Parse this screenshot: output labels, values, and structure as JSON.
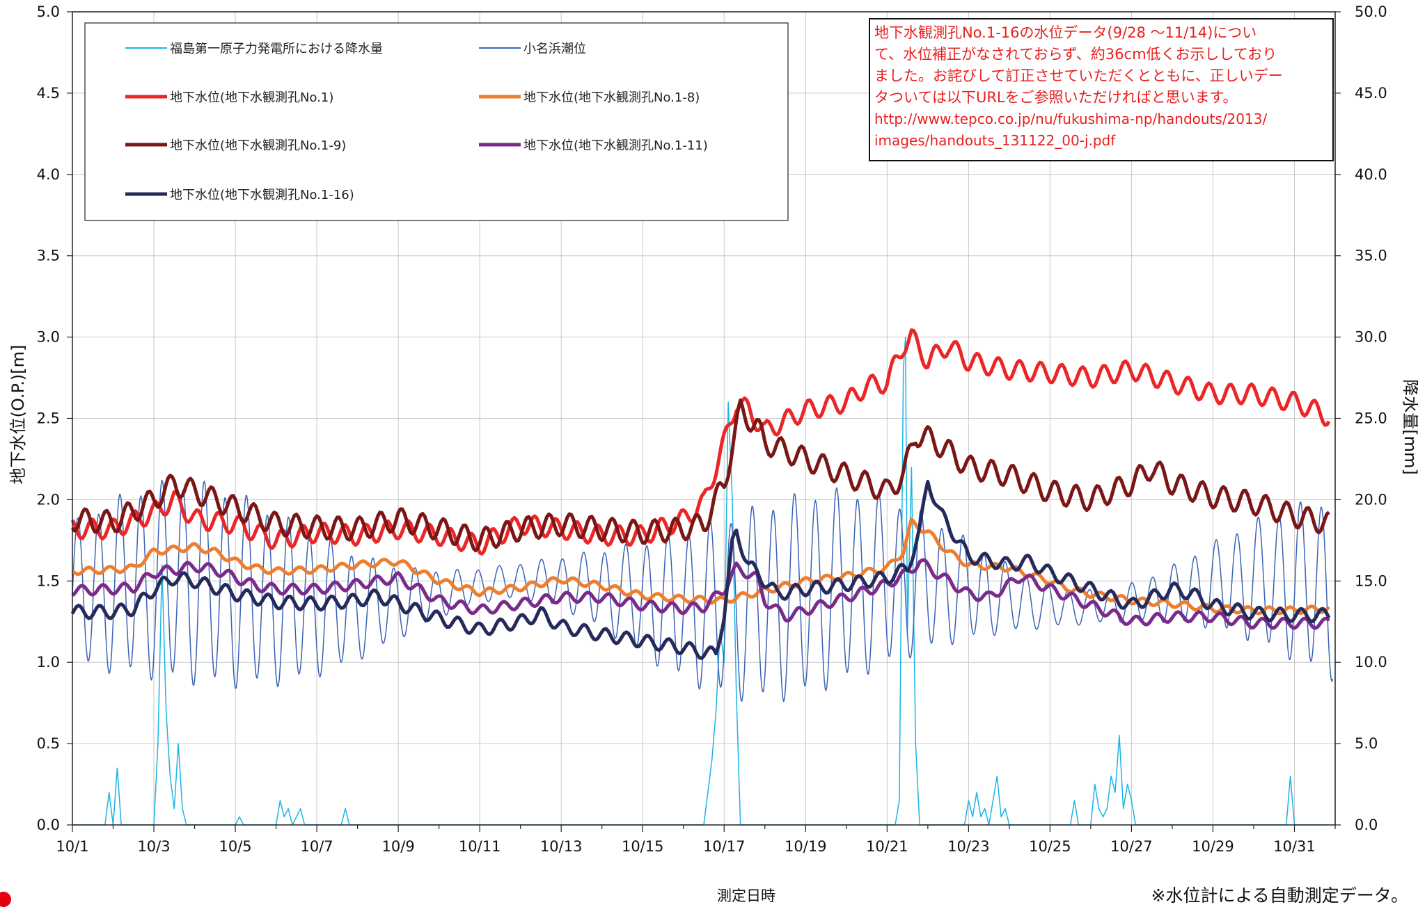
{
  "chart_data": {
    "type": "line",
    "xlabel": "測定日時",
    "ylabel_left": "地下水位(O.P.)[m]",
    "ylabel_right": "降水量[mm]",
    "x_ticks": [
      "10/1",
      "10/3",
      "10/5",
      "10/7",
      "10/9",
      "10/11",
      "10/13",
      "10/15",
      "10/17",
      "10/19",
      "10/21",
      "10/23",
      "10/25",
      "10/27",
      "10/29",
      "10/31"
    ],
    "x_range": [
      "2013-10-01",
      "2013-11-01"
    ],
    "y_left_ticks": [
      "0.0",
      "0.5",
      "1.0",
      "1.5",
      "2.0",
      "2.5",
      "3.0",
      "3.5",
      "4.0",
      "4.5",
      "5.0"
    ],
    "y_right_ticks": [
      "0.0",
      "5.0",
      "10.0",
      "15.0",
      "20.0",
      "25.0",
      "30.0",
      "35.0",
      "40.0",
      "45.0",
      "50.0"
    ],
    "ylim_left": [
      0,
      5
    ],
    "ylim_right": [
      0,
      50
    ],
    "grid": true,
    "legend_position": "top-left",
    "series": [
      {
        "name": "福島第一原子力発電所における降水量",
        "axis": "right",
        "color": "#1ab4e6",
        "width": 1.5,
        "points": [
          [
            0,
            0
          ],
          [
            0.8,
            0
          ],
          [
            0.9,
            2
          ],
          [
            1.0,
            0
          ],
          [
            1.1,
            3.5
          ],
          [
            1.2,
            0
          ],
          [
            2.0,
            0
          ],
          [
            2.1,
            5
          ],
          [
            2.2,
            16
          ],
          [
            2.3,
            7
          ],
          [
            2.4,
            3
          ],
          [
            2.5,
            1
          ],
          [
            2.6,
            5
          ],
          [
            2.7,
            1
          ],
          [
            2.8,
            0
          ],
          [
            4.0,
            0
          ],
          [
            4.1,
            0.5
          ],
          [
            4.2,
            0
          ],
          [
            5.0,
            0
          ],
          [
            5.1,
            1.5
          ],
          [
            5.2,
            0.5
          ],
          [
            5.3,
            1
          ],
          [
            5.4,
            0
          ],
          [
            5.6,
            1
          ],
          [
            5.7,
            0
          ],
          [
            6.6,
            0
          ],
          [
            6.7,
            1
          ],
          [
            6.8,
            0
          ],
          [
            15.5,
            0
          ],
          [
            15.6,
            2
          ],
          [
            15.7,
            4
          ],
          [
            15.8,
            7
          ],
          [
            15.9,
            12
          ],
          [
            16.0,
            10
          ],
          [
            16.1,
            26
          ],
          [
            16.2,
            20
          ],
          [
            16.3,
            8
          ],
          [
            16.4,
            0
          ],
          [
            20.2,
            0
          ],
          [
            20.3,
            1.5
          ],
          [
            20.4,
            28
          ],
          [
            20.45,
            30
          ],
          [
            20.5,
            12
          ],
          [
            20.6,
            22
          ],
          [
            20.7,
            5
          ],
          [
            20.8,
            0
          ],
          [
            21.9,
            0
          ],
          [
            22.0,
            1.5
          ],
          [
            22.1,
            0.5
          ],
          [
            22.2,
            2
          ],
          [
            22.3,
            0.5
          ],
          [
            22.4,
            1
          ],
          [
            22.5,
            0
          ],
          [
            22.6,
            1.5
          ],
          [
            22.7,
            3
          ],
          [
            22.8,
            0.5
          ],
          [
            22.9,
            1
          ],
          [
            23.0,
            0
          ],
          [
            24.5,
            0
          ],
          [
            24.6,
            1.5
          ],
          [
            24.7,
            0
          ],
          [
            25.0,
            0
          ],
          [
            25.1,
            2.5
          ],
          [
            25.2,
            1
          ],
          [
            25.3,
            0.5
          ],
          [
            25.4,
            1
          ],
          [
            25.5,
            3
          ],
          [
            25.6,
            2
          ],
          [
            25.7,
            5.5
          ],
          [
            25.8,
            1
          ],
          [
            25.9,
            2.5
          ],
          [
            26.0,
            1.5
          ],
          [
            26.1,
            0
          ],
          [
            29.8,
            0
          ],
          [
            29.9,
            3
          ],
          [
            30.0,
            0
          ],
          [
            30.8,
            0
          ]
        ]
      },
      {
        "name": "小名浜潮位",
        "axis": "left",
        "color": "#3b64b4",
        "width": 1.5,
        "tidal": true
      },
      {
        "name": "地下水位(地下水観測孔No.1)",
        "axis": "left",
        "color": "#ec2527",
        "width": 5,
        "points": [
          [
            0,
            1.82
          ],
          [
            1,
            1.82
          ],
          [
            2,
            1.92
          ],
          [
            2.5,
            2.0
          ],
          [
            3,
            1.88
          ],
          [
            4,
            1.85
          ],
          [
            5,
            1.75
          ],
          [
            6,
            1.8
          ],
          [
            7,
            1.78
          ],
          [
            8,
            1.82
          ],
          [
            9,
            1.78
          ],
          [
            10,
            1.72
          ],
          [
            11,
            1.85
          ],
          [
            12,
            1.82
          ],
          [
            13,
            1.78
          ],
          [
            14,
            1.78
          ],
          [
            15,
            1.88
          ],
          [
            15.5,
            1.98
          ],
          [
            16,
            2.35
          ],
          [
            16.3,
            2.6
          ],
          [
            16.6,
            2.55
          ],
          [
            17,
            2.42
          ],
          [
            18,
            2.55
          ],
          [
            19,
            2.6
          ],
          [
            19.5,
            2.7
          ],
          [
            20,
            2.72
          ],
          [
            20.4,
            2.95
          ],
          [
            20.6,
            3.0
          ],
          [
            21,
            2.85
          ],
          [
            21.5,
            2.95
          ],
          [
            22,
            2.85
          ],
          [
            23,
            2.8
          ],
          [
            24,
            2.78
          ],
          [
            25,
            2.75
          ],
          [
            26,
            2.8
          ],
          [
            27,
            2.72
          ],
          [
            28,
            2.65
          ],
          [
            29,
            2.65
          ],
          [
            30,
            2.6
          ],
          [
            30.5,
            2.55
          ],
          [
            30.9,
            2.5
          ]
        ]
      },
      {
        "name": "地下水位(地下水観測孔No.1-8)",
        "axis": "left",
        "color": "#ef7d2e",
        "width": 5,
        "points": [
          [
            0,
            1.56
          ],
          [
            1,
            1.57
          ],
          [
            1.5,
            1.58
          ],
          [
            2,
            1.68
          ],
          [
            3,
            1.71
          ],
          [
            3.5,
            1.68
          ],
          [
            4,
            1.62
          ],
          [
            4.5,
            1.58
          ],
          [
            5,
            1.56
          ],
          [
            6,
            1.57
          ],
          [
            7,
            1.6
          ],
          [
            8,
            1.62
          ],
          [
            9,
            1.5
          ],
          [
            10,
            1.43
          ],
          [
            11,
            1.46
          ],
          [
            12,
            1.51
          ],
          [
            13,
            1.47
          ],
          [
            14,
            1.41
          ],
          [
            15,
            1.39
          ],
          [
            16,
            1.38
          ],
          [
            17,
            1.44
          ],
          [
            18,
            1.5
          ],
          [
            19,
            1.53
          ],
          [
            20,
            1.58
          ],
          [
            20.4,
            1.68
          ],
          [
            20.6,
            1.86
          ],
          [
            21,
            1.8
          ],
          [
            21.5,
            1.68
          ],
          [
            22,
            1.6
          ],
          [
            23,
            1.58
          ],
          [
            24,
            1.5
          ],
          [
            24.5,
            1.45
          ],
          [
            25,
            1.42
          ],
          [
            26,
            1.38
          ],
          [
            27,
            1.36
          ],
          [
            28,
            1.33
          ],
          [
            29,
            1.32
          ],
          [
            30,
            1.32
          ],
          [
            30.9,
            1.33
          ]
        ]
      },
      {
        "name": "地下水位(地下水観測孔No.1-9)",
        "axis": "left",
        "color": "#7b1616",
        "width": 5,
        "points": [
          [
            0,
            1.88
          ],
          [
            1,
            1.86
          ],
          [
            2,
            2.0
          ],
          [
            2.5,
            2.1
          ],
          [
            3,
            2.05
          ],
          [
            4,
            1.95
          ],
          [
            5,
            1.85
          ],
          [
            6,
            1.83
          ],
          [
            7,
            1.82
          ],
          [
            8,
            1.88
          ],
          [
            9,
            1.82
          ],
          [
            10,
            1.75
          ],
          [
            11,
            1.82
          ],
          [
            12,
            1.85
          ],
          [
            13,
            1.82
          ],
          [
            14,
            1.8
          ],
          [
            15,
            1.82
          ],
          [
            15.5,
            1.85
          ],
          [
            16,
            2.1
          ],
          [
            16.4,
            2.55
          ],
          [
            16.8,
            2.45
          ],
          [
            17,
            2.35
          ],
          [
            18,
            2.25
          ],
          [
            19,
            2.15
          ],
          [
            20,
            2.05
          ],
          [
            20.4,
            2.15
          ],
          [
            20.7,
            2.4
          ],
          [
            21,
            2.38
          ],
          [
            21.5,
            2.3
          ],
          [
            22,
            2.2
          ],
          [
            23,
            2.15
          ],
          [
            24,
            2.05
          ],
          [
            25,
            2.0
          ],
          [
            26,
            2.1
          ],
          [
            26.5,
            2.2
          ],
          [
            27,
            2.1
          ],
          [
            28,
            2.02
          ],
          [
            29,
            1.98
          ],
          [
            30,
            1.9
          ],
          [
            30.9,
            1.85
          ]
        ]
      },
      {
        "name": "地下水位(地下水観測孔No.1-11)",
        "axis": "left",
        "color": "#7a2a8a",
        "width": 5,
        "points": [
          [
            0,
            1.44
          ],
          [
            1,
            1.45
          ],
          [
            1.5,
            1.46
          ],
          [
            2,
            1.55
          ],
          [
            3,
            1.59
          ],
          [
            3.5,
            1.57
          ],
          [
            4,
            1.52
          ],
          [
            4.5,
            1.47
          ],
          [
            5,
            1.45
          ],
          [
            6,
            1.45
          ],
          [
            7,
            1.48
          ],
          [
            8,
            1.52
          ],
          [
            9,
            1.38
          ],
          [
            10,
            1.32
          ],
          [
            11,
            1.36
          ],
          [
            12,
            1.4
          ],
          [
            13,
            1.4
          ],
          [
            14,
            1.35
          ],
          [
            15,
            1.33
          ],
          [
            15.5,
            1.34
          ],
          [
            16,
            1.45
          ],
          [
            16.3,
            1.58
          ],
          [
            16.8,
            1.52
          ],
          [
            17,
            1.38
          ],
          [
            17.5,
            1.28
          ],
          [
            18,
            1.32
          ],
          [
            19,
            1.4
          ],
          [
            20,
            1.48
          ],
          [
            20.5,
            1.55
          ],
          [
            20.8,
            1.62
          ],
          [
            21.2,
            1.55
          ],
          [
            22,
            1.42
          ],
          [
            22.5,
            1.4
          ],
          [
            23,
            1.48
          ],
          [
            23.3,
            1.53
          ],
          [
            24,
            1.45
          ],
          [
            25,
            1.35
          ],
          [
            26,
            1.25
          ],
          [
            27,
            1.28
          ],
          [
            28,
            1.28
          ],
          [
            29,
            1.24
          ],
          [
            30,
            1.24
          ],
          [
            30.9,
            1.24
          ]
        ]
      },
      {
        "name": "地下水位(地下水観測孔No.1-16)",
        "axis": "left",
        "color": "#262a5a",
        "width": 5,
        "points": [
          [
            0,
            1.31
          ],
          [
            1,
            1.31
          ],
          [
            1.5,
            1.33
          ],
          [
            2,
            1.45
          ],
          [
            2.5,
            1.52
          ],
          [
            3,
            1.5
          ],
          [
            4,
            1.42
          ],
          [
            5,
            1.37
          ],
          [
            6,
            1.36
          ],
          [
            7,
            1.38
          ],
          [
            7.5,
            1.41
          ],
          [
            8,
            1.36
          ],
          [
            9,
            1.27
          ],
          [
            10,
            1.2
          ],
          [
            11,
            1.25
          ],
          [
            11.5,
            1.3
          ],
          [
            12,
            1.22
          ],
          [
            13,
            1.17
          ],
          [
            14,
            1.13
          ],
          [
            15,
            1.09
          ],
          [
            15.5,
            1.06
          ],
          [
            15.8,
            1.05
          ],
          [
            16,
            1.3
          ],
          [
            16.2,
            1.72
          ],
          [
            16.3,
            1.8
          ],
          [
            16.6,
            1.6
          ],
          [
            17,
            1.5
          ],
          [
            17.3,
            1.42
          ],
          [
            18,
            1.45
          ],
          [
            19,
            1.48
          ],
          [
            20,
            1.52
          ],
          [
            20.5,
            1.58
          ],
          [
            20.8,
            1.8
          ],
          [
            21,
            2.12
          ],
          [
            21.3,
            1.92
          ],
          [
            22,
            1.65
          ],
          [
            23,
            1.6
          ],
          [
            23.5,
            1.62
          ],
          [
            24,
            1.55
          ],
          [
            25,
            1.45
          ],
          [
            26,
            1.35
          ],
          [
            27,
            1.45
          ],
          [
            27.5,
            1.42
          ],
          [
            28,
            1.35
          ],
          [
            29,
            1.3
          ],
          [
            30,
            1.29
          ],
          [
            30.9,
            1.29
          ]
        ]
      }
    ]
  },
  "notice": {
    "lines": [
      "地下水観測孔No.1-16の水位データ(9/28 〜11/14)につい",
      "て、水位補正がなされておらず、約36cm低くお示ししており",
      "ました。お詫びして訂正させていただくとともに、正しいデー",
      "タついては以下URLをご参照いただければと思います。"
    ],
    "url_lines": [
      "http://www.tepco.co.jp/nu/fukushima-np/handouts/2013/",
      "images/handouts_131122_00-j.pdf"
    ]
  },
  "footnote": "※水位計による自動測定データ。"
}
